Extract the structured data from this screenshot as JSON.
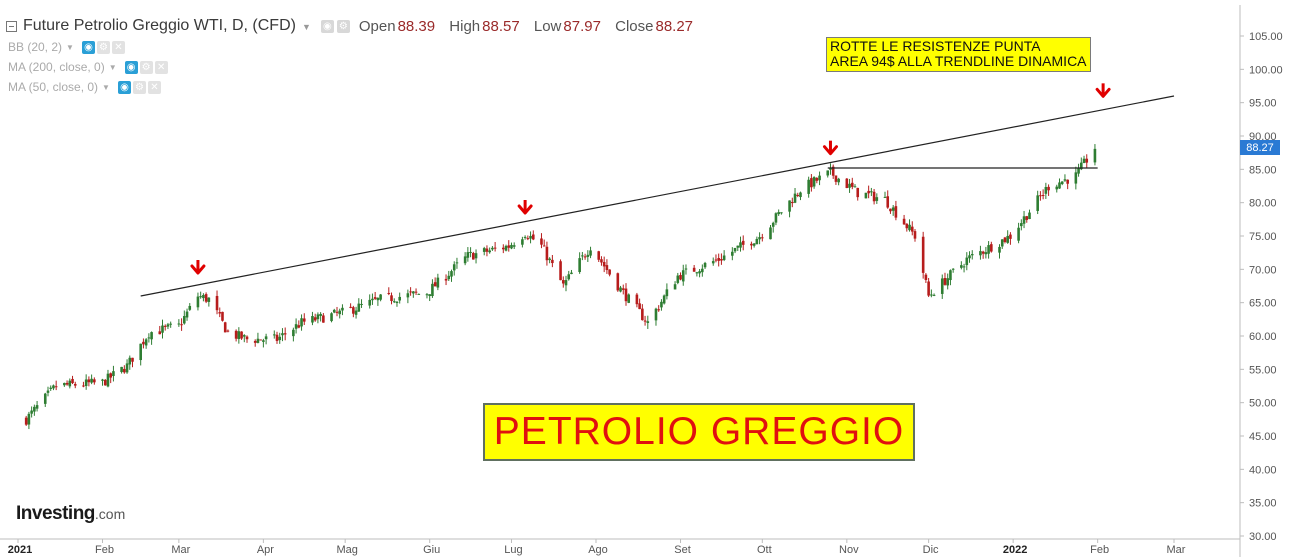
{
  "header": {
    "title": "Future Petrolio Greggio WTI, D, (CFD)",
    "open_label": "Open",
    "open": "88.39",
    "high_label": "High",
    "high": "88.57",
    "low_label": "Low",
    "low": "87.97",
    "close_label": "Close",
    "close": "88.27"
  },
  "indicators": [
    {
      "label": "BB (20, 2)"
    },
    {
      "label": "MA (200, close, 0)"
    },
    {
      "label": "MA (50, close, 0)"
    }
  ],
  "annotations": {
    "note_line1": "ROTTE LE RESISTENZE PUNTA",
    "note_line2": "AREA 94$ ALLA TRENDLINE DINAMICA",
    "title_box": "PETROLIO GREGGIO"
  },
  "price_tag": "88.27",
  "logo": {
    "main": "Investing",
    "suffix": ".com"
  },
  "colors": {
    "up": "#2e7d32",
    "down": "#b71c1c",
    "arrow": "#e00000",
    "highlight": "#ffff00",
    "price_tag": "#2a7ad4"
  },
  "chart_data": {
    "type": "candlestick",
    "instrument": "Future Petrolio Greggio WTI",
    "timeframe": "D",
    "x_tick_labels": [
      "2021",
      "Feb",
      "Mar",
      "Apr",
      "Mag",
      "Giu",
      "Lug",
      "Ago",
      "Set",
      "Ott",
      "Nov",
      "Dic",
      "2022",
      "Feb",
      "Mar"
    ],
    "x_range": [
      "2021-01-01",
      "2022-03-01"
    ],
    "y_tick_labels": [
      "105.00",
      "100.00",
      "95.00",
      "90.00",
      "85.00",
      "80.00",
      "75.00",
      "70.00",
      "65.00",
      "60.00",
      "55.00",
      "50.00",
      "45.00",
      "40.00",
      "35.00",
      "30.00"
    ],
    "ylim": [
      30,
      107
    ],
    "y_axis_side": "right",
    "last_price": 88.27,
    "close_series": {
      "date": [
        "2021-01-04",
        "2021-01-15",
        "2021-02-01",
        "2021-02-10",
        "2021-02-18",
        "2021-03-01",
        "2021-03-08",
        "2021-03-12",
        "2021-03-19",
        "2021-03-26",
        "2021-04-06",
        "2021-04-15",
        "2021-04-30",
        "2021-05-14",
        "2021-05-31",
        "2021-06-15",
        "2021-06-30",
        "2021-07-06",
        "2021-07-12",
        "2021-07-20",
        "2021-07-30",
        "2021-08-10",
        "2021-08-20",
        "2021-08-31",
        "2021-09-15",
        "2021-09-30",
        "2021-10-15",
        "2021-10-26",
        "2021-11-05",
        "2021-11-15",
        "2021-11-26",
        "2021-12-01",
        "2021-12-15",
        "2021-12-31",
        "2022-01-14",
        "2022-01-24",
        "2022-01-31"
      ],
      "close": [
        47.5,
        52.5,
        53.0,
        55.5,
        60.5,
        61.5,
        66.0,
        65.5,
        60.5,
        59.5,
        59.5,
        62.0,
        63.5,
        65.5,
        66.5,
        72.0,
        73.5,
        75.5,
        73.5,
        67.5,
        73.5,
        67.0,
        62.0,
        69.0,
        71.5,
        75.0,
        82.0,
        84.5,
        81.5,
        80.5,
        75.0,
        66.0,
        71.5,
        75.0,
        82.5,
        84.0,
        88.27
      ]
    },
    "resistance_peaks": [
      {
        "date": "2021-03-08",
        "value": 67.5
      },
      {
        "date": "2021-07-06",
        "value": 76.5
      },
      {
        "date": "2021-10-26",
        "value": 85.4
      },
      {
        "date": "2022-02-03",
        "value": 94.0
      }
    ],
    "trendline": {
      "start": {
        "date": "2021-02-15",
        "value": 66.0
      },
      "end": {
        "date": "2022-03-01",
        "value": 96.0
      }
    },
    "horizontal_level": {
      "value": 85.2,
      "from": "2021-10-25",
      "to": "2022-02-01"
    },
    "grid": false
  }
}
